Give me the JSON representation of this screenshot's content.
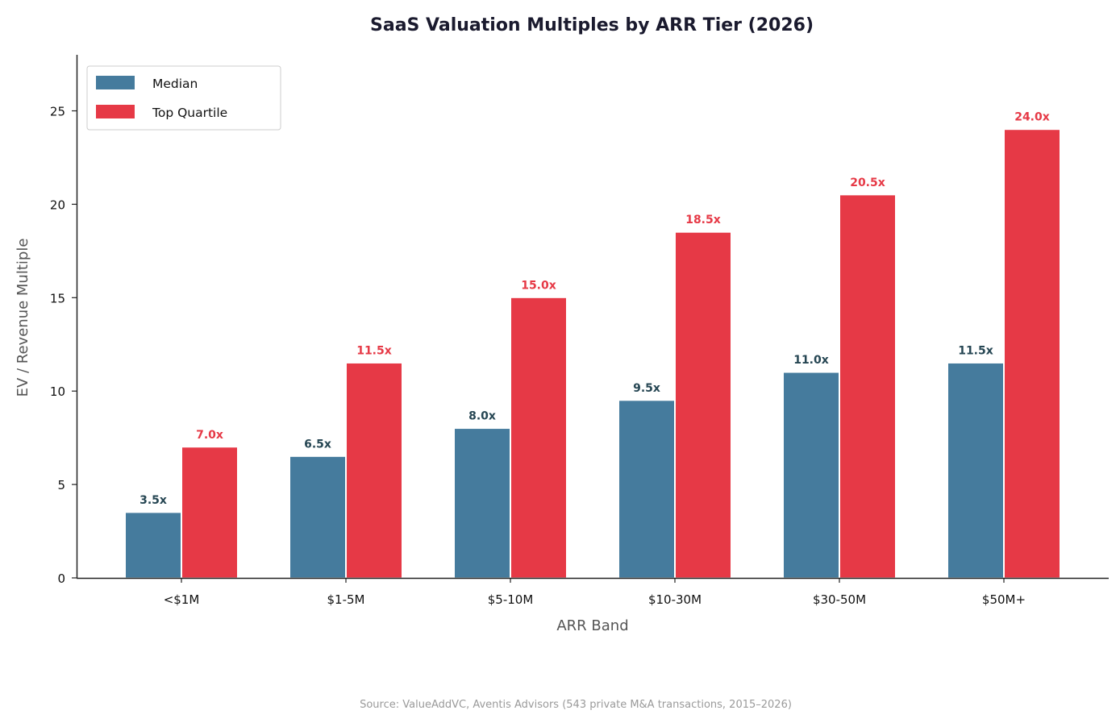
{
  "chart_data": {
    "type": "bar",
    "title": "SaaS Valuation Multiples by ARR Tier (2026)",
    "xlabel": "ARR Band",
    "ylabel": "EV / Revenue Multiple",
    "categories": [
      "<$1M",
      "$1-5M",
      "$5-10M",
      "$10-30M",
      "$30-50M",
      "$50M+"
    ],
    "series": [
      {
        "name": "Median",
        "color": "#457b9d",
        "label_color": "#264653",
        "values": [
          3.5,
          6.5,
          8.0,
          9.5,
          11.0,
          11.5
        ],
        "labels": [
          "3.5x",
          "6.5x",
          "8.0x",
          "9.5x",
          "11.0x",
          "11.5x"
        ]
      },
      {
        "name": "Top Quartile",
        "color": "#e63946",
        "label_color": "#e63946",
        "values": [
          7.0,
          11.5,
          15.0,
          18.5,
          20.5,
          24.0
        ],
        "labels": [
          "7.0x",
          "11.5x",
          "15.0x",
          "18.5x",
          "20.5x",
          "24.0x"
        ]
      }
    ],
    "ylim": [
      0,
      28
    ],
    "yticks": [
      0,
      5,
      10,
      15,
      20,
      25
    ],
    "ytick_labels": [
      "0",
      "5",
      "10",
      "15",
      "20",
      "25"
    ],
    "grid": false,
    "legend_position": "top-left",
    "source_note": "Source: ValueAddVC, Aventis Advisors (543 private M&A transactions, 2015–2026)"
  }
}
